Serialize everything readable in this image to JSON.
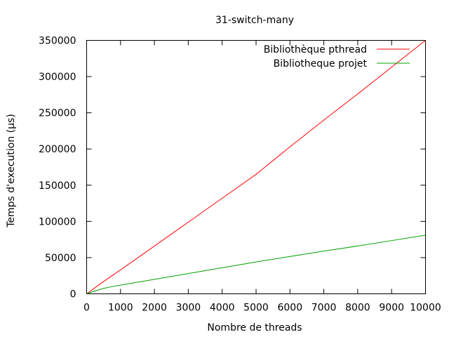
{
  "chart_data": {
    "type": "line",
    "title": "31-switch-many",
    "xlabel": "Nombre de threads",
    "ylabel": "Temps d'execution (µs)",
    "xlim": [
      0,
      10000
    ],
    "ylim": [
      0,
      350000
    ],
    "xticks": [
      0,
      1000,
      2000,
      3000,
      4000,
      5000,
      6000,
      7000,
      8000,
      9000,
      10000
    ],
    "yticks": [
      0,
      50000,
      100000,
      150000,
      200000,
      250000,
      300000,
      350000
    ],
    "grid": false,
    "legend_position": "top-right",
    "series": [
      {
        "name": "Bibliothèque pthread",
        "color": "#ff0000",
        "x": [
          0,
          500,
          1000,
          2000,
          3000,
          4000,
          5000,
          6000,
          7000,
          8000,
          9000,
          10000
        ],
        "y": [
          0,
          17000,
          33000,
          66000,
          99000,
          132000,
          165000,
          203000,
          240000,
          276000,
          313000,
          350000
        ]
      },
      {
        "name": "Bibliotheque projet",
        "color": "#00a000",
        "x": [
          0,
          250,
          500,
          750,
          1000,
          2000,
          3000,
          4000,
          5000,
          6000,
          7000,
          8000,
          9000,
          10000
        ],
        "y": [
          0,
          4000,
          7500,
          10000,
          12000,
          20000,
          28000,
          36000,
          44000,
          51500,
          59000,
          66000,
          73500,
          81000
        ]
      }
    ]
  }
}
